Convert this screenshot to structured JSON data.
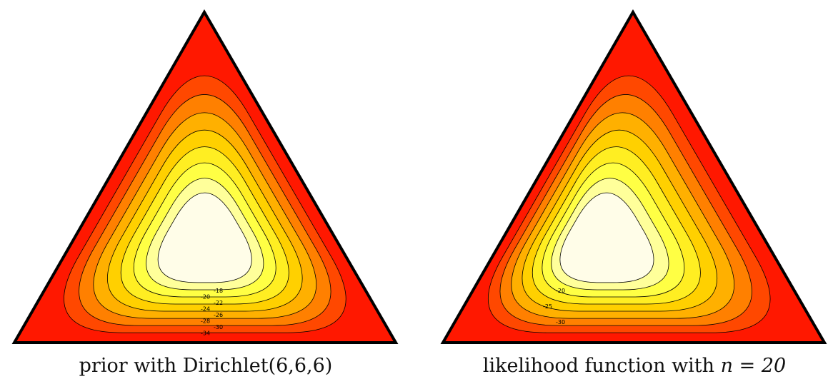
{
  "chart_data": [
    {
      "type": "contour",
      "caption": "prior with Dirichlet(6,6,6)",
      "shape": "ternary-simplex",
      "contour_levels": [
        -18,
        -20,
        -22,
        -24,
        -26,
        -28,
        -30,
        -34
      ],
      "fill_colors": [
        "#fffde8",
        "#ffff9a",
        "#ffff44",
        "#ffee22",
        "#ffd000",
        "#ffb000",
        "#ff8000",
        "#ff4800",
        "#ff1800"
      ],
      "center": [
        0.333,
        0.333
      ],
      "skew": 0.0
    },
    {
      "type": "contour",
      "caption_text": "likelihood function with ",
      "caption_math": "n = 20",
      "shape": "ternary-simplex",
      "contour_levels": [
        -20,
        -25,
        -30
      ],
      "fill_colors": [
        "#fffde8",
        "#ffff9a",
        "#ffff44",
        "#ffee22",
        "#ffd000",
        "#ffb000",
        "#ff8000",
        "#ff4800",
        "#ff1800"
      ],
      "center": [
        0.45,
        0.28
      ],
      "skew": 0.35
    }
  ]
}
